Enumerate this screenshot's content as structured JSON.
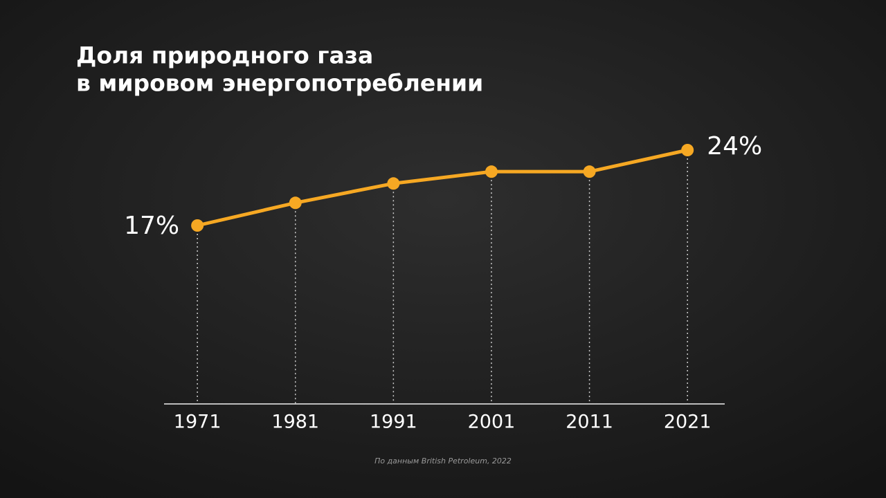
{
  "chart_data": {
    "type": "line",
    "title": [
      "Доля природного газа",
      "в мировом энергопотреблении"
    ],
    "x": [
      1971,
      1981,
      1991,
      2001,
      2011,
      2021
    ],
    "series": [
      {
        "color": "#f6a823",
        "values": [
          17,
          19.1,
          20.9,
          22,
          22,
          24
        ],
        "value_labels": [
          "17%",
          null,
          null,
          null,
          null,
          "24%"
        ]
      }
    ],
    "xlim": [
      1967.6,
      2024.8
    ],
    "xticks": [
      1971,
      1981,
      1991,
      2001,
      2011,
      2021
    ],
    "source": "По данным British Petroleum, 2022"
  }
}
